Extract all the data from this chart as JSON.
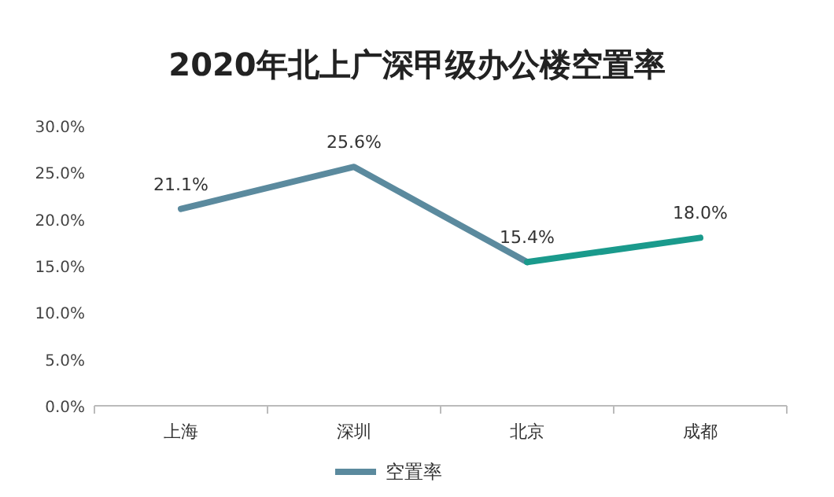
{
  "chart_data": {
    "type": "line",
    "title": "2020年北上广深甲级办公楼空置率",
    "categories": [
      "上海",
      "深圳",
      "北京",
      "成都"
    ],
    "series": [
      {
        "name": "空置率",
        "color": "#5b8a9e",
        "values": [
          21.1,
          25.6,
          15.4,
          null
        ],
        "value_labels": [
          "21.1%",
          "25.6%",
          "15.4%",
          null
        ]
      },
      {
        "color": "#1a9a8c",
        "values": [
          null,
          null,
          15.4,
          18.0
        ],
        "value_labels": [
          null,
          null,
          null,
          "18.0%"
        ]
      }
    ],
    "ylim": [
      0,
      30
    ],
    "yticks": [
      {
        "value": 0,
        "label": "0.0%"
      },
      {
        "value": 5,
        "label": "5.0%"
      },
      {
        "value": 10,
        "label": "10.0%"
      },
      {
        "value": 15,
        "label": "15.0%"
      },
      {
        "value": 20,
        "label": "20.0%"
      },
      {
        "value": 25,
        "label": "25.0%"
      },
      {
        "value": 30,
        "label": "30.0%"
      }
    ],
    "legend": "bottom",
    "grid": false,
    "marker": "none"
  }
}
